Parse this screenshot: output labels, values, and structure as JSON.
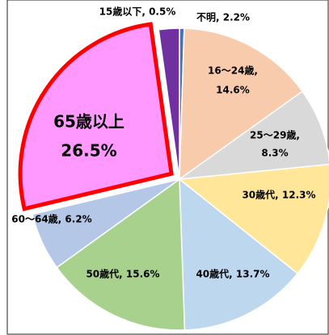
{
  "chart_data": {
    "type": "pie",
    "values": [
      0.5,
      14.6,
      8.3,
      12.3,
      13.7,
      15.6,
      6.2,
      26.5,
      2.2
    ],
    "data_labels": [
      [
        "15歳以下, 0.5%"
      ],
      [
        "16〜24歳,",
        "14.6%"
      ],
      [
        "25〜29歳,",
        "8.3%"
      ],
      [
        "30歳代, 12.3%"
      ],
      [
        "40歳代, 13.7%"
      ],
      [
        "50歳代, 15.6%"
      ],
      [
        "60〜64歳, 6.2%"
      ],
      [
        "65歳以上",
        "26.5%"
      ],
      [
        "不明, 2.2%"
      ]
    ],
    "colors": [
      "#4472c4",
      "#f8cbad",
      "#d9d9d9",
      "#ffe699",
      "#bdd7ee",
      "#a9d18e",
      "#b4c7e7",
      "#ff99ff",
      "#7030a0"
    ],
    "highlight": 7,
    "highlight_color": "#ff0000"
  }
}
